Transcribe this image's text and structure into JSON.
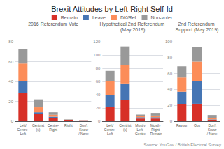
{
  "title": "Brexit Attitudes by Left-Right Self-Id",
  "annotations": [
    "Source: YouGov / British Electoral Survey"
  ],
  "chart_data": [
    {
      "type": "bar",
      "title": "2016 Referendum Vote",
      "stacked": true,
      "grid": true,
      "categories": [
        "Left/\nCentre-\nLeft",
        "Centrist\n(s)",
        "Centre-\nRight",
        "Right",
        "Don't\nKnow\n/ None"
      ],
      "series": [
        {
          "name": "Remain",
          "color": "#d73027",
          "values": [
            28,
            7,
            3,
            0.8,
            0.2
          ]
        },
        {
          "name": "Leave",
          "color": "#4575b4",
          "values": [
            12,
            2,
            1.5,
            0.3,
            0.05
          ]
        },
        {
          "name": "DK/Ref",
          "color": "#fc8d59",
          "values": [
            18,
            5,
            2,
            0.4,
            0.05
          ]
        },
        {
          "name": "Non-voter",
          "color": "#999999",
          "values": [
            15,
            8,
            2.5,
            0.4,
            0.05
          ]
        }
      ],
      "ylim": [
        0,
        80
      ],
      "yticks": [
        0,
        20,
        40,
        60,
        80
      ]
    },
    {
      "type": "bar",
      "title": "Hypothetical 2nd Referendum (May 2019)",
      "stacked": true,
      "grid": true,
      "categories": [
        "Left/\nCentre-\nLeft",
        "Centrist\n(s)",
        "Mostly\nLeft-\nCentre",
        "Mostly\nRight\n-Remain"
      ],
      "series": [
        {
          "name": "Remain",
          "color": "#d73027",
          "values": [
            22,
            32,
            4,
            4
          ]
        },
        {
          "name": "Leave",
          "color": "#4575b4",
          "values": [
            18,
            25,
            2,
            2
          ]
        },
        {
          "name": "DK/Ref",
          "color": "#fc8d59",
          "values": [
            20,
            28,
            2,
            2.5
          ]
        },
        {
          "name": "Non-voter",
          "color": "#999999",
          "values": [
            16,
            28,
            2,
            3
          ]
        }
      ],
      "ylim": [
        0,
        120
      ],
      "yticks": [
        0,
        20,
        40,
        60,
        80,
        100,
        120
      ]
    },
    {
      "type": "bar",
      "title": "2nd Referendum Support (May 2019)",
      "stacked": true,
      "grid": true,
      "legend": "top",
      "categories": [
        "Favour",
        "Ops",
        "Don't\nKnow\n/ None"
      ],
      "series": [
        {
          "name": "Remain",
          "color": "#d73027",
          "values": [
            22,
            22,
            1.5
          ]
        },
        {
          "name": "Leave",
          "color": "#4575b4",
          "values": [
            15,
            28,
            0.8
          ]
        },
        {
          "name": "DK/Ref",
          "color": "#fc8d59",
          "values": [
            18,
            25,
            1.5
          ]
        },
        {
          "name": "Non-voter",
          "color": "#999999",
          "values": [
            14,
            18,
            4
          ]
        }
      ],
      "ylim": [
        0,
        100
      ],
      "yticks": [
        0,
        20,
        40,
        60,
        80,
        100
      ]
    }
  ]
}
